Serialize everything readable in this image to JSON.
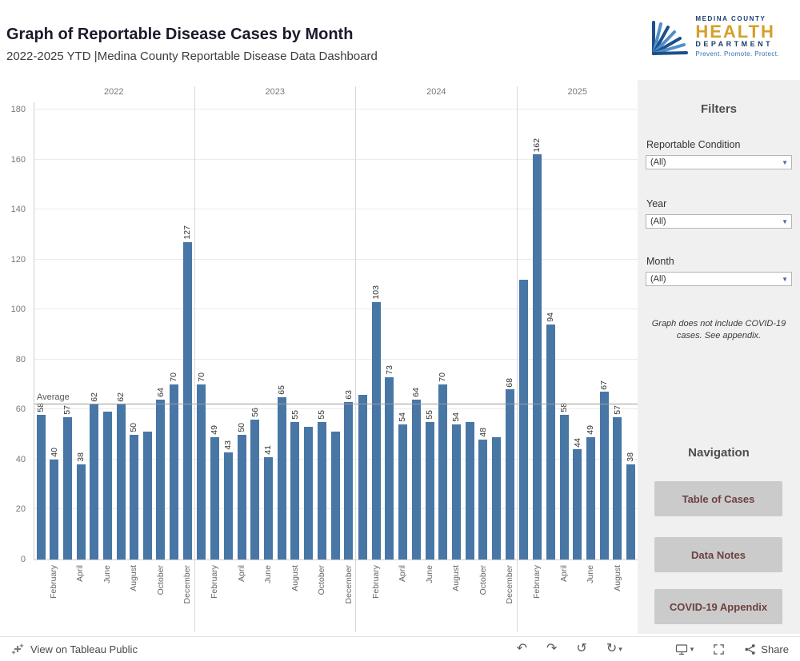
{
  "header": {
    "title": "Graph of Reportable Disease Cases by Month",
    "subtitle": "2022-2025 YTD |Medina County Reportable Disease Data Dashboard",
    "logo": {
      "line1": "MEDINA COUNTY",
      "line2": "HEALTH",
      "line3": "DEPARTMENT",
      "tagline": "Prevent. Promote. Protect."
    }
  },
  "chart_data": {
    "type": "bar",
    "title": "Graph of Reportable Disease Cases by Month",
    "xlabel": "",
    "ylabel": "",
    "ylim": [
      0,
      180
    ],
    "yticks": [
      0,
      20,
      40,
      60,
      80,
      100,
      120,
      140,
      160,
      180
    ],
    "grid": true,
    "bar_color": "#4877a6",
    "average_line": {
      "label": "Average",
      "value": 62
    },
    "groups": [
      {
        "year": "2022",
        "values": [
          58,
          40,
          57,
          38,
          62,
          59,
          62,
          50,
          51,
          64,
          70,
          127
        ],
        "labels": [
          "58",
          "40",
          "57",
          "38",
          "62",
          "",
          "62",
          "50",
          "",
          "64",
          "70",
          "127"
        ],
        "ticks": [
          "",
          "February",
          "",
          "April",
          "",
          "June",
          "",
          "August",
          "",
          "October",
          "",
          "December"
        ]
      },
      {
        "year": "2023",
        "values": [
          70,
          49,
          43,
          50,
          56,
          41,
          65,
          55,
          53,
          55,
          51,
          63
        ],
        "labels": [
          "70",
          "49",
          "43",
          "50",
          "56",
          "41",
          "65",
          "55",
          "",
          "55",
          "",
          "63"
        ],
        "ticks": [
          "",
          "February",
          "",
          "April",
          "",
          "June",
          "",
          "August",
          "",
          "October",
          "",
          "December"
        ]
      },
      {
        "year": "2024",
        "values": [
          66,
          103,
          73,
          54,
          64,
          55,
          70,
          54,
          55,
          48,
          49,
          68
        ],
        "labels": [
          "",
          "103",
          "73",
          "54",
          "64",
          "55",
          "70",
          "54",
          "",
          "48",
          "",
          "68"
        ],
        "ticks": [
          "",
          "February",
          "",
          "April",
          "",
          "June",
          "",
          "August",
          "",
          "October",
          "",
          "December"
        ]
      },
      {
        "year": "2025",
        "values": [
          112,
          162,
          94,
          58,
          44,
          49,
          67,
          57,
          38
        ],
        "labels": [
          "",
          "162",
          "94",
          "58",
          "44",
          "49",
          "67",
          "57",
          "38"
        ],
        "ticks": [
          "",
          "February",
          "",
          "April",
          "",
          "June",
          "",
          "August",
          ""
        ]
      }
    ]
  },
  "sidebar": {
    "filters_heading": "Filters",
    "filters": [
      {
        "label": "Reportable Condition",
        "value": "(All)"
      },
      {
        "label": "Year",
        "value": "(All)"
      },
      {
        "label": "Month",
        "value": "(All)"
      }
    ],
    "note": "Graph does not include COVID-19 cases. See appendix.",
    "navigation_heading": "Navigation",
    "nav_buttons": [
      "Table of Cases",
      "Data Notes",
      "COVID-19 Appendix"
    ]
  },
  "footer": {
    "view_link": "View on Tableau Public",
    "share_label": "Share",
    "icons": {
      "undo": "↶",
      "redo": "↷",
      "reset": "↺",
      "refresh": "↻",
      "caret": "▾",
      "dropdown_caret": "▼"
    }
  },
  "colors": {
    "bar": "#4877a6",
    "gold": "#d3a02b",
    "navy": "#1c3e6e",
    "sidebar_bg": "#f0f0f0"
  }
}
